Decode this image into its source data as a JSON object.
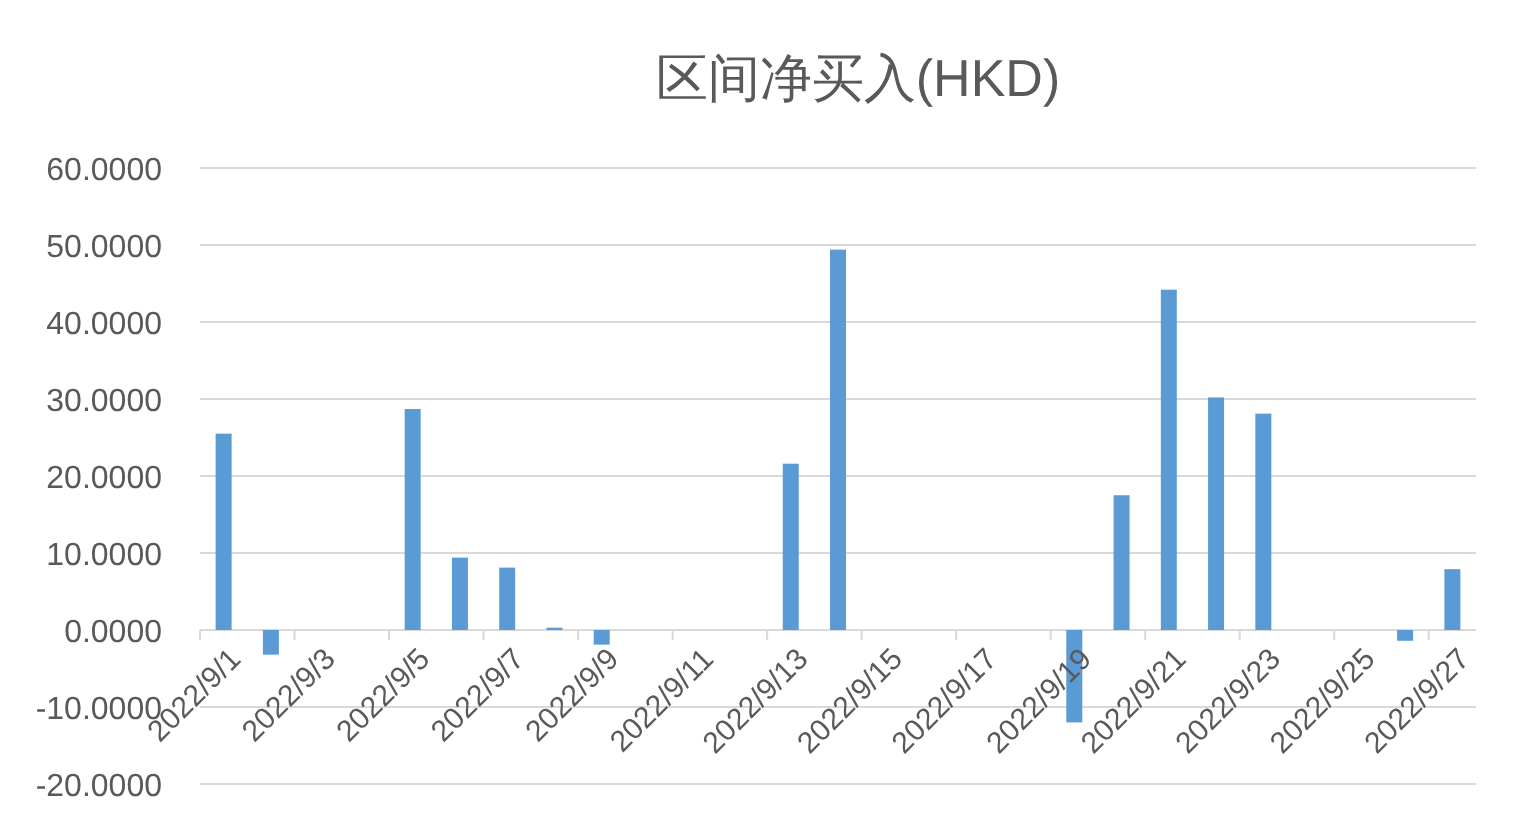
{
  "chart_data": {
    "type": "bar",
    "title": "区间净买入(HKD)",
    "categories": [
      "2022/9/1",
      null,
      "2022/9/3",
      null,
      "2022/9/5",
      null,
      "2022/9/7",
      null,
      "2022/9/9",
      null,
      "2022/9/11",
      null,
      "2022/9/13",
      null,
      "2022/9/15",
      null,
      "2022/9/17",
      null,
      "2022/9/19",
      null,
      "2022/9/21",
      null,
      "2022/9/23",
      null,
      "2022/9/25",
      null,
      "2022/9/27"
    ],
    "values": [
      25.5,
      -3.2,
      null,
      null,
      28.7,
      9.4,
      8.1,
      0.3,
      -1.9,
      null,
      null,
      null,
      21.6,
      49.4,
      null,
      null,
      null,
      null,
      -12.0,
      17.5,
      44.2,
      30.2,
      28.1,
      null,
      null,
      -1.4,
      7.9
    ],
    "color": "#5b9bd5",
    "ylim": [
      -20,
      60
    ],
    "yticks": [
      {
        "value": -20,
        "label": "-20.0000"
      },
      {
        "value": -10,
        "label": "-10.0000"
      },
      {
        "value": 0,
        "label": "0.0000"
      },
      {
        "value": 10,
        "label": "10.0000"
      },
      {
        "value": 20,
        "label": "20.0000"
      },
      {
        "value": 30,
        "label": "30.0000"
      },
      {
        "value": 40,
        "label": "40.0000"
      },
      {
        "value": 50,
        "label": "50.0000"
      },
      {
        "value": 60,
        "label": "60.0000"
      }
    ],
    "grid": "y"
  }
}
